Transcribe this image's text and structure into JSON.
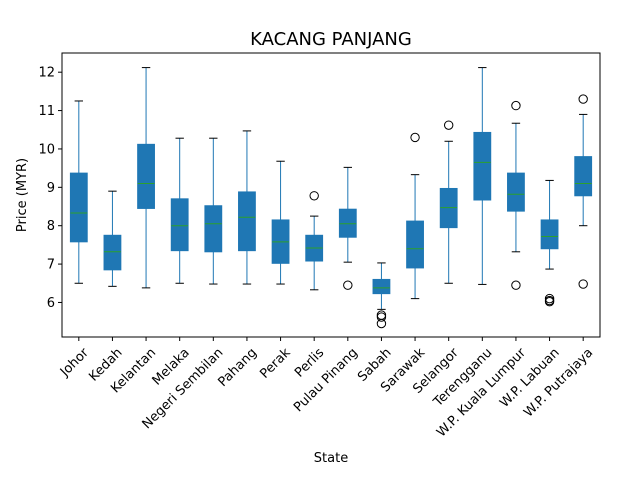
{
  "chart_data": {
    "type": "box",
    "title": "KACANG PANJANG",
    "xlabel": "State",
    "ylabel": "Price (MYR)",
    "ylim": [
      5.1,
      12.5
    ],
    "yticks": [
      6,
      7,
      8,
      9,
      10,
      11,
      12
    ],
    "grid": false,
    "colors": {
      "box": "#1f77b4",
      "median": "#2ca02c",
      "whisker": "#1f77b4",
      "flier": "#000000"
    },
    "categories": [
      "Johor",
      "Kedah",
      "Kelantan",
      "Melaka",
      "Negeri Sembilan",
      "Pahang",
      "Perak",
      "Perlis",
      "Pulau Pinang",
      "Sabah",
      "Sarawak",
      "Selangor",
      "Terengganu",
      "W.P. Kuala Lumpur",
      "W.P. Labuan",
      "W.P. Putrajaya"
    ],
    "boxes": [
      {
        "state": "Johor",
        "whislo": 6.5,
        "q1": 7.58,
        "med": 8.33,
        "q3": 9.37,
        "whishi": 11.25,
        "fliers": []
      },
      {
        "state": "Kedah",
        "whislo": 6.42,
        "q1": 6.85,
        "med": 7.32,
        "q3": 7.75,
        "whishi": 8.9,
        "fliers": []
      },
      {
        "state": "Kelantan",
        "whislo": 6.38,
        "q1": 8.45,
        "med": 9.1,
        "q3": 10.12,
        "whishi": 12.12,
        "fliers": []
      },
      {
        "state": "Melaka",
        "whislo": 6.5,
        "q1": 7.35,
        "med": 8.0,
        "q3": 8.7,
        "whishi": 10.28,
        "fliers": []
      },
      {
        "state": "Negeri Sembilan",
        "whislo": 6.48,
        "q1": 7.32,
        "med": 8.05,
        "q3": 8.52,
        "whishi": 10.28,
        "fliers": []
      },
      {
        "state": "Pahang",
        "whislo": 6.48,
        "q1": 7.35,
        "med": 8.22,
        "q3": 8.88,
        "whishi": 10.47,
        "fliers": []
      },
      {
        "state": "Perak",
        "whislo": 6.48,
        "q1": 7.02,
        "med": 7.58,
        "q3": 8.15,
        "whishi": 9.68,
        "fliers": []
      },
      {
        "state": "Perlis",
        "whislo": 6.33,
        "q1": 7.08,
        "med": 7.42,
        "q3": 7.75,
        "whishi": 8.25,
        "fliers": [
          8.78
        ]
      },
      {
        "state": "Pulau Pinang",
        "whislo": 7.05,
        "q1": 7.7,
        "med": 8.05,
        "q3": 8.43,
        "whishi": 9.52,
        "fliers": [
          6.45
        ]
      },
      {
        "state": "Sabah",
        "whislo": 5.82,
        "q1": 6.23,
        "med": 6.38,
        "q3": 6.6,
        "whishi": 7.03,
        "fliers": [
          5.67,
          5.62,
          5.45
        ]
      },
      {
        "state": "Sarawak",
        "whislo": 6.1,
        "q1": 6.9,
        "med": 7.4,
        "q3": 8.12,
        "whishi": 9.33,
        "fliers": [
          10.3
        ]
      },
      {
        "state": "Selangor",
        "whislo": 6.5,
        "q1": 7.95,
        "med": 8.47,
        "q3": 8.97,
        "whishi": 10.2,
        "fliers": [
          10.62
        ]
      },
      {
        "state": "Terengganu",
        "whislo": 6.47,
        "q1": 8.67,
        "med": 9.65,
        "q3": 10.43,
        "whishi": 12.12,
        "fliers": []
      },
      {
        "state": "W.P. Kuala Lumpur",
        "whislo": 7.32,
        "q1": 8.38,
        "med": 8.82,
        "q3": 9.37,
        "whishi": 10.67,
        "fliers": [
          11.13,
          6.45
        ]
      },
      {
        "state": "W.P. Labuan",
        "whislo": 6.87,
        "q1": 7.4,
        "med": 7.72,
        "q3": 8.15,
        "whishi": 9.18,
        "fliers": [
          6.1,
          6.05,
          6.02
        ]
      },
      {
        "state": "W.P. Putrajaya",
        "whislo": 8.0,
        "q1": 8.78,
        "med": 9.1,
        "q3": 9.8,
        "whishi": 10.9,
        "fliers": [
          11.3,
          6.48
        ]
      }
    ]
  }
}
